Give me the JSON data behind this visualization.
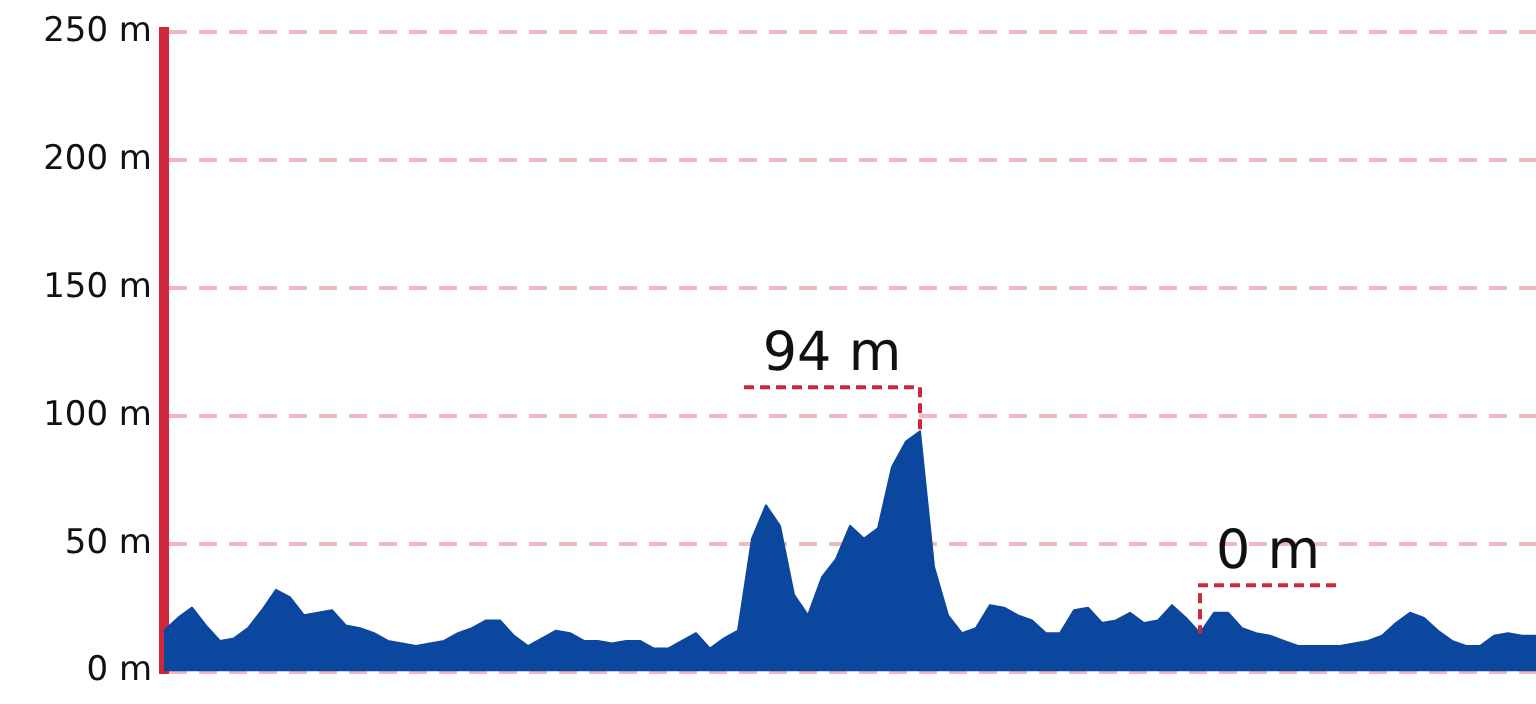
{
  "chart_data": {
    "type": "area",
    "tick_labels": "y",
    "grid": "y",
    "legend": false,
    "marker": "none",
    "ylim": [
      0,
      250
    ],
    "yticks": [
      {
        "value": 0,
        "label": "0 m"
      },
      {
        "value": 50,
        "label": "50 m"
      },
      {
        "value": 100,
        "label": "100 m"
      },
      {
        "value": 150,
        "label": "150 m"
      },
      {
        "value": 200,
        "label": "200 m"
      },
      {
        "value": 250,
        "label": "250 m"
      }
    ],
    "categories": [
      null,
      null,
      null,
      null,
      null,
      null,
      null,
      null,
      null,
      null,
      null,
      null,
      null,
      null,
      null,
      null,
      null,
      null,
      null,
      null,
      null,
      null,
      null,
      null,
      null,
      null,
      null,
      null,
      null,
      null,
      null,
      null,
      null,
      null,
      null,
      null,
      null,
      null,
      null,
      null,
      null,
      null,
      null,
      null,
      null,
      null,
      null,
      null,
      null,
      null,
      null,
      null,
      null,
      null,
      null,
      null,
      null,
      null,
      null,
      null,
      null,
      null,
      null,
      null,
      null,
      null,
      null,
      null,
      null,
      null,
      null,
      null,
      null,
      null,
      null,
      null,
      null,
      null,
      null,
      null,
      null,
      null,
      null,
      null,
      null,
      null,
      null,
      null,
      null,
      null,
      null,
      null,
      null,
      null,
      null,
      null,
      null,
      null,
      null
    ],
    "series": [
      {
        "color": "#0b479e",
        "values": [
          16,
          21,
          25,
          18,
          12,
          13,
          17,
          24,
          32,
          29,
          22,
          23,
          24,
          18,
          17,
          15,
          12,
          11,
          10,
          11,
          12,
          15,
          17,
          20,
          20,
          14,
          10,
          13,
          16,
          15,
          12,
          12,
          11,
          12,
          12,
          9,
          9,
          12,
          15,
          9,
          13,
          16,
          52,
          65,
          57,
          30,
          22,
          37,
          44,
          57,
          52,
          56,
          80,
          90,
          94,
          41,
          22,
          15,
          17,
          26,
          25,
          22,
          20,
          15,
          15,
          24,
          25,
          19,
          20,
          23,
          19,
          20,
          26,
          21,
          15,
          23,
          23,
          17,
          15,
          14,
          12,
          10,
          10,
          10,
          10,
          11,
          12,
          14,
          19,
          23,
          21,
          16,
          12,
          10,
          10,
          14,
          15,
          14,
          14
        ]
      }
    ],
    "annotations": [
      "94 m",
      "0 m"
    ]
  }
}
